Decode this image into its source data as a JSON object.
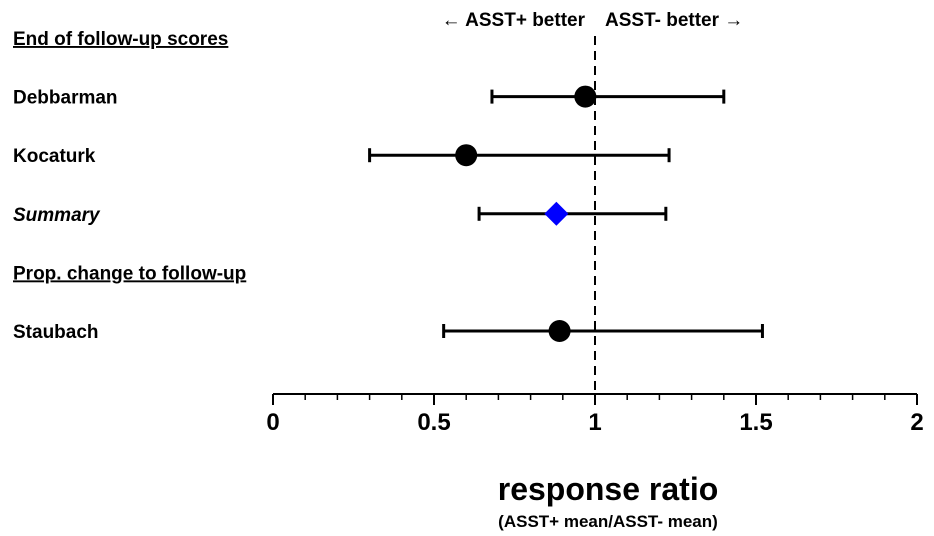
{
  "chart_data": {
    "type": "forest",
    "xlabel": "response ratio",
    "xlabel_sub": "(ASST+ mean/ASST- mean)",
    "xlim": [
      0,
      2
    ],
    "x_ticks": [
      0,
      0.5,
      1,
      1.5,
      2
    ],
    "x_tick_labels": [
      "0",
      "0.5",
      "1",
      "1.5",
      "2"
    ],
    "minor_tick_step": 0.1,
    "reference_line": 1,
    "direction_left": "← ASST+ better",
    "direction_right": "ASST- better →",
    "summary_color": "#0000ff",
    "rows": [
      {
        "kind": "heading",
        "label": "End of follow-up scores"
      },
      {
        "kind": "study",
        "label": "Debbarman",
        "estimate": 0.97,
        "lower": 0.68,
        "upper": 1.4
      },
      {
        "kind": "study",
        "label": "Kocaturk",
        "estimate": 0.6,
        "lower": 0.3,
        "upper": 1.23
      },
      {
        "kind": "summary",
        "label": "Summary",
        "estimate": 0.88,
        "lower": 0.64,
        "upper": 1.22
      },
      {
        "kind": "heading",
        "label": "Prop. change to follow-up"
      },
      {
        "kind": "study",
        "label": "Staubach",
        "estimate": 0.89,
        "lower": 0.53,
        "upper": 1.52
      }
    ]
  }
}
